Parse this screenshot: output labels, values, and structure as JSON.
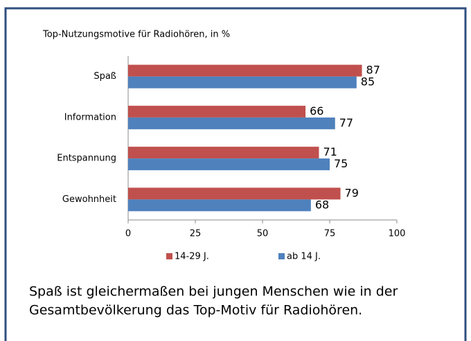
{
  "chart_data": {
    "type": "bar",
    "orientation": "horizontal",
    "title": "Top-Nutzungsmotive für Radiohören, in %",
    "categories": [
      "Spaß",
      "Information",
      "Entspannung",
      "Gewohnheit"
    ],
    "series": [
      {
        "name": "14-29 J.",
        "color": "#c0504d",
        "values": [
          87,
          66,
          71,
          79
        ]
      },
      {
        "name": "ab 14 J.",
        "color": "#4f81bd",
        "values": [
          85,
          77,
          75,
          68
        ]
      }
    ],
    "xlim": [
      0,
      100
    ],
    "xticks": [
      0,
      25,
      50,
      75,
      100
    ],
    "grid": false,
    "legend": "bottom",
    "caption": [
      "Spaß ist gleichermaßen bei jungen Menschen wie in der",
      "Gesamtbevölkerung das Top-Motiv für Radiohören."
    ]
  }
}
